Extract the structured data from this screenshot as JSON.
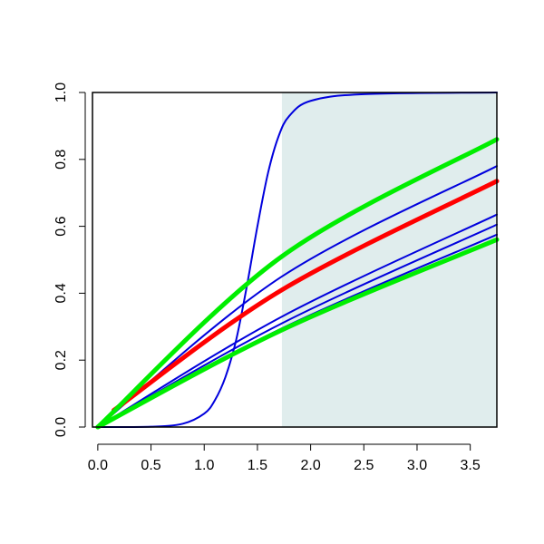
{
  "chart_data": {
    "type": "line",
    "title": "",
    "xlabel": "",
    "ylabel": "",
    "xlim": [
      -0.05,
      3.75
    ],
    "ylim": [
      0,
      1
    ],
    "x_ticks": [
      "0.0",
      "0.5",
      "1.0",
      "1.5",
      "2.0",
      "2.5",
      "3.0",
      "3.5"
    ],
    "y_ticks": [
      "0.0",
      "0.2",
      "0.4",
      "0.6",
      "0.8",
      "1.0"
    ],
    "grid": false,
    "legend": "none",
    "shaded_region": {
      "x_start": 1.73,
      "x_end": 3.75,
      "color": "#e0eded"
    },
    "series": [
      {
        "color": "#0000dd",
        "x": [
          0,
          1.73,
          3.75
        ],
        "y": [
          0,
          0.45,
          0.78
        ]
      },
      {
        "color": "#0000dd",
        "x": [
          0,
          1.73,
          3.75
        ],
        "y": [
          0,
          0.33,
          0.635
        ]
      },
      {
        "color": "#0000dd",
        "x": [
          0,
          1.73,
          3.75
        ],
        "y": [
          0,
          0.31,
          0.605
        ]
      },
      {
        "color": "#0000dd",
        "x": [
          0,
          1.73,
          3.75
        ],
        "y": [
          0,
          0.295,
          0.575
        ]
      },
      {
        "color": "#0000dd",
        "x": [
          0,
          0.5,
          0.8,
          1.0,
          1.1,
          1.2,
          1.3,
          1.4,
          1.5,
          1.6,
          1.7,
          1.8,
          2.0,
          2.5,
          3.75
        ],
        "y": [
          0,
          0.001,
          0.01,
          0.04,
          0.08,
          0.15,
          0.26,
          0.42,
          0.6,
          0.76,
          0.87,
          0.93,
          0.975,
          0.995,
          1.0
        ]
      },
      {
        "color": "#ff0000",
        "x": [
          0.15,
          1.73,
          3.75
        ],
        "y": [
          0.05,
          0.41,
          0.735
        ]
      },
      {
        "color": "#00ee00",
        "x": [
          0,
          1.73,
          3.75
        ],
        "y": [
          0,
          0.51,
          0.86
        ]
      },
      {
        "color": "#00ee00",
        "x": [
          0,
          1.73,
          3.75
        ],
        "y": [
          0,
          0.29,
          0.56
        ]
      }
    ]
  }
}
